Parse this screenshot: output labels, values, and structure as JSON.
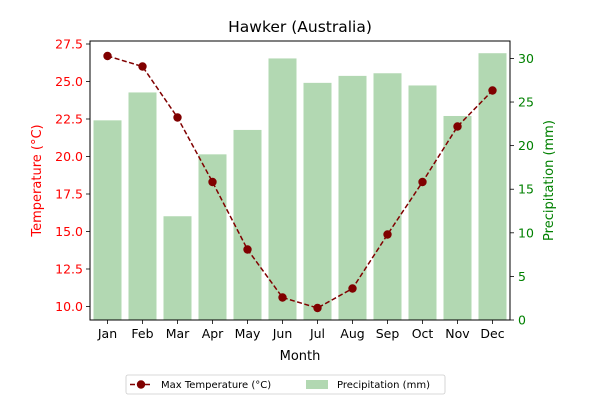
{
  "chart_data": {
    "type": "bar+line",
    "title": "Hawker (Australia)",
    "xlabel": "Month",
    "categories": [
      "Jan",
      "Feb",
      "Mar",
      "Apr",
      "May",
      "Jun",
      "Jul",
      "Aug",
      "Sep",
      "Oct",
      "Nov",
      "Dec"
    ],
    "y_left": {
      "label": "Temperature (°C)",
      "lim": [
        9.1,
        27.7
      ],
      "ticks": [
        "10.0",
        "12.5",
        "15.0",
        "17.5",
        "20.0",
        "22.5",
        "25.0",
        "27.5"
      ],
      "color": "#ff0000"
    },
    "y_right": {
      "label": "Precipitation (mm)",
      "lim": [
        0,
        32
      ],
      "ticks": [
        "0",
        "5",
        "10",
        "15",
        "20",
        "25",
        "30"
      ],
      "color": "#008000"
    },
    "series": [
      {
        "name": "Max Temperature (°C)",
        "kind": "line",
        "axis": "left",
        "color": "#800000",
        "values": [
          26.7,
          26.0,
          22.6,
          18.3,
          13.8,
          10.6,
          9.9,
          11.2,
          14.8,
          18.3,
          22.0,
          24.4
        ]
      },
      {
        "name": "Precipitation (mm)",
        "kind": "bar",
        "axis": "right",
        "color": "#b2d8b2",
        "values": [
          22.9,
          26.1,
          11.9,
          19.0,
          21.8,
          30.0,
          27.2,
          28.0,
          28.3,
          26.9,
          23.4,
          30.6
        ]
      }
    ],
    "legend": "bottom-center",
    "grid": false
  }
}
